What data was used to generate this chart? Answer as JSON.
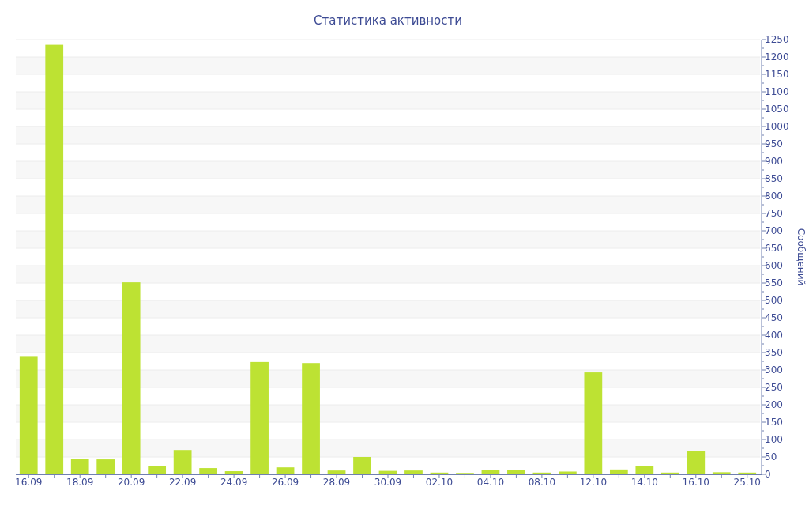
{
  "chart_data": {
    "type": "bar",
    "title": "Статистика активности",
    "y2label": "Сообщений",
    "categories": [
      "16.09",
      null,
      "18.09",
      null,
      "20.09",
      null,
      "22.09",
      null,
      "24.09",
      null,
      "26.09",
      null,
      "28.09",
      null,
      "30.09",
      null,
      "02.10",
      null,
      "04.10",
      null,
      "08.10",
      null,
      "12.10",
      null,
      "14.10",
      null,
      "16.10",
      null,
      "25.10"
    ],
    "values": [
      340,
      1235,
      45,
      43,
      552,
      25,
      70,
      18,
      9,
      323,
      20,
      320,
      11,
      50,
      10,
      11,
      5,
      4,
      12,
      12,
      5,
      8,
      293,
      14,
      23,
      5,
      66,
      6,
      5
    ],
    "color": "#bde233",
    "ylim": [
      0,
      1250
    ],
    "yticks": [
      0,
      50,
      100,
      150,
      200,
      250,
      300,
      350,
      400,
      450,
      500,
      550,
      600,
      650,
      700,
      750,
      800,
      850,
      900,
      950,
      1000,
      1050,
      1100,
      1150,
      1200,
      1250
    ],
    "grid": "y"
  }
}
